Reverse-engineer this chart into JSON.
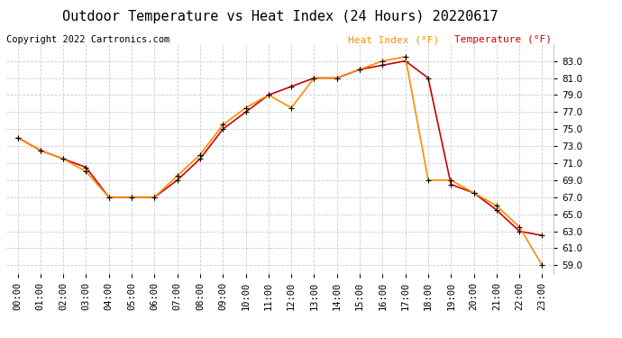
{
  "title": "Outdoor Temperature vs Heat Index (24 Hours) 20220617",
  "copyright": "Copyright 2022 Cartronics.com",
  "legend_heat_index": "Heat Index (°F)",
  "legend_temperature": "Temperature (°F)",
  "x_labels": [
    "00:00",
    "01:00",
    "02:00",
    "03:00",
    "04:00",
    "05:00",
    "06:00",
    "07:00",
    "08:00",
    "09:00",
    "10:00",
    "11:00",
    "12:00",
    "13:00",
    "14:00",
    "15:00",
    "16:00",
    "17:00",
    "18:00",
    "19:00",
    "20:00",
    "21:00",
    "22:00",
    "23:00"
  ],
  "temperature": [
    74.0,
    72.5,
    71.5,
    70.5,
    67.0,
    67.0,
    67.0,
    69.0,
    71.5,
    75.0,
    77.0,
    79.0,
    80.0,
    81.0,
    81.0,
    82.0,
    82.5,
    83.0,
    81.0,
    68.5,
    67.5,
    65.5,
    63.0,
    62.5
  ],
  "heat_index": [
    74.0,
    72.5,
    71.5,
    70.0,
    67.0,
    67.0,
    67.0,
    69.5,
    72.0,
    75.5,
    77.5,
    79.0,
    77.5,
    81.0,
    81.0,
    82.0,
    83.0,
    83.5,
    69.0,
    69.0,
    67.5,
    66.0,
    63.5,
    59.0
  ],
  "ylim": [
    58.0,
    85.0
  ],
  "yticks": [
    59.0,
    61.0,
    63.0,
    65.0,
    67.0,
    69.0,
    71.0,
    73.0,
    75.0,
    77.0,
    79.0,
    81.0,
    83.0
  ],
  "temperature_color": "#cc0000",
  "heat_index_color": "#ff8c00",
  "background_color": "#ffffff",
  "grid_color": "#cccccc",
  "title_fontsize": 11,
  "copyright_fontsize": 7.5,
  "legend_fontsize": 8,
  "axis_fontsize": 7.5
}
